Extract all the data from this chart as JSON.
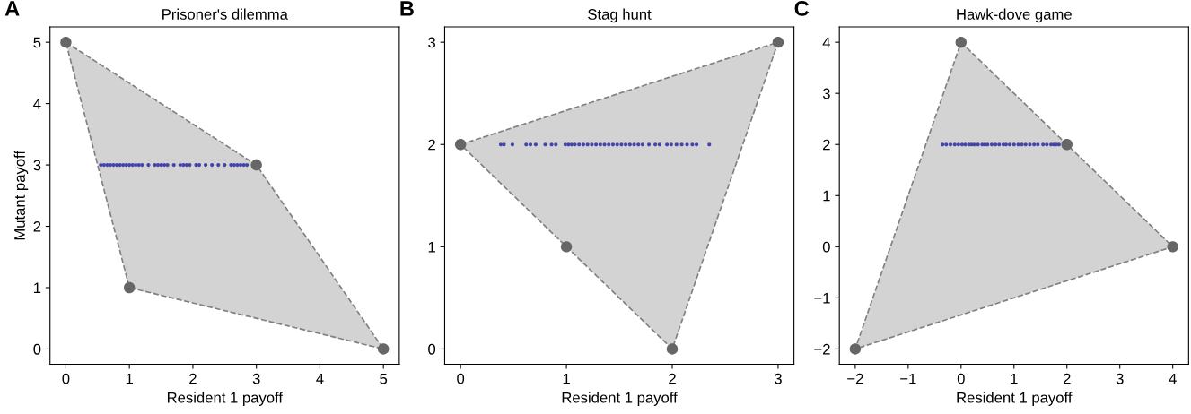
{
  "chart_data": [
    {
      "type": "scatter",
      "title": "Prisoner's dilemma",
      "xlabel": "Resident 1 payoff",
      "ylabel": "Mutant payoff",
      "annotations": [
        "A"
      ],
      "xlim": [
        -0.25,
        5.25
      ],
      "ylim": [
        -0.25,
        5.25
      ],
      "xticks": [
        0,
        1,
        2,
        3,
        4,
        5
      ],
      "yticks": [
        0,
        1,
        2,
        3,
        4,
        5
      ],
      "grid": false,
      "legend": false,
      "series": [
        {
          "type": "area",
          "color": "#d3d3d3",
          "line_style": "dashed",
          "x": [
            0,
            3,
            5,
            1
          ],
          "values": [
            5,
            3,
            0,
            1
          ]
        },
        {
          "color": "#4444aa",
          "x": [
            0.55,
            0.6,
            0.65,
            0.7,
            0.75,
            0.8,
            0.85,
            0.9,
            0.95,
            1.0,
            1.05,
            1.1,
            1.15,
            1.2,
            1.3,
            1.4,
            1.45,
            1.5,
            1.55,
            1.6,
            1.7,
            1.8,
            1.85,
            1.9,
            1.95,
            2.05,
            2.1,
            2.2,
            2.3,
            2.4,
            2.5,
            2.6,
            2.65,
            2.7,
            2.75,
            2.8,
            2.85
          ],
          "values": [
            3,
            3,
            3,
            3,
            3,
            3,
            3,
            3,
            3,
            3,
            3,
            3,
            3,
            3,
            3,
            3,
            3,
            3,
            3,
            3,
            3,
            3,
            3,
            3,
            3,
            3,
            3,
            3,
            3,
            3,
            3,
            3,
            3,
            3,
            3,
            3,
            3
          ]
        },
        {
          "type": "scatter",
          "color": "#666666",
          "x": [
            0,
            3,
            5,
            1
          ],
          "values": [
            5,
            3,
            0,
            1
          ]
        }
      ]
    },
    {
      "type": "scatter",
      "title": "Stag hunt",
      "xlabel": "Resident 1 payoff",
      "annotations": [
        "B"
      ],
      "xlim": [
        -0.15,
        3.15
      ],
      "ylim": [
        -0.15,
        3.15
      ],
      "xticks": [
        0,
        1,
        2,
        3
      ],
      "yticks": [
        0,
        1,
        2,
        3
      ],
      "grid": false,
      "legend": false,
      "series": [
        {
          "type": "area",
          "color": "#d3d3d3",
          "line_style": "dashed",
          "x": [
            0,
            3,
            2,
            1
          ],
          "values": [
            2,
            3,
            0,
            1
          ]
        },
        {
          "color": "#4444aa",
          "x": [
            0.38,
            0.41,
            0.49,
            0.62,
            0.66,
            0.71,
            0.8,
            0.86,
            0.9,
            0.99,
            1.02,
            1.05,
            1.08,
            1.12,
            1.16,
            1.2,
            1.24,
            1.28,
            1.32,
            1.36,
            1.4,
            1.44,
            1.48,
            1.52,
            1.56,
            1.6,
            1.64,
            1.68,
            1.72,
            1.78,
            1.84,
            1.88,
            1.95,
            1.99,
            2.04,
            2.09,
            2.14,
            2.19,
            2.23,
            2.35
          ],
          "values": [
            2,
            2,
            2,
            2,
            2,
            2,
            2,
            2,
            2,
            2,
            2,
            2,
            2,
            2,
            2,
            2,
            2,
            2,
            2,
            2,
            2,
            2,
            2,
            2,
            2,
            2,
            2,
            2,
            2,
            2,
            2,
            2,
            2,
            2,
            2,
            2,
            2,
            2,
            2,
            2
          ]
        },
        {
          "type": "scatter",
          "color": "#666666",
          "x": [
            0,
            3,
            2,
            1
          ],
          "values": [
            2,
            3,
            0,
            1
          ]
        }
      ]
    },
    {
      "type": "scatter",
      "title": "Hawk-dove game",
      "xlabel": "Resident 1 payoff",
      "annotations": [
        "C"
      ],
      "xlim": [
        -2.3,
        4.3
      ],
      "ylim": [
        -2.3,
        4.3
      ],
      "xticks": [
        {
          "value": -2,
          "label": "−2"
        },
        {
          "value": -1,
          "label": "−1"
        },
        0,
        1,
        2,
        3,
        4
      ],
      "yticks": [
        {
          "value": -2,
          "label": "−2"
        },
        {
          "value": -1,
          "label": "−1"
        },
        0,
        1,
        2,
        3,
        4
      ],
      "grid": false,
      "legend": false,
      "series": [
        {
          "type": "area",
          "color": "#d3d3d3",
          "line_style": "dashed",
          "x": [
            0,
            4,
            -2
          ],
          "values": [
            4,
            0,
            -2
          ]
        },
        {
          "color": "#4444aa",
          "x": [
            -0.35,
            -0.28,
            -0.2,
            -0.12,
            -0.05,
            0.02,
            0.08,
            0.15,
            0.2,
            0.25,
            0.32,
            0.4,
            0.45,
            0.5,
            0.58,
            0.65,
            0.72,
            0.8,
            0.85,
            0.92,
            1.0,
            1.08,
            1.15,
            1.22,
            1.3,
            1.38,
            1.45,
            1.55,
            1.62,
            1.7,
            1.75,
            1.8,
            1.85
          ],
          "values": [
            2,
            2,
            2,
            2,
            2,
            2,
            2,
            2,
            2,
            2,
            2,
            2,
            2,
            2,
            2,
            2,
            2,
            2,
            2,
            2,
            2,
            2,
            2,
            2,
            2,
            2,
            2,
            2,
            2,
            2,
            2,
            2,
            2
          ]
        },
        {
          "type": "scatter",
          "color": "#666666",
          "x": [
            0,
            2,
            4,
            -2
          ],
          "values": [
            4,
            2,
            0,
            -2
          ]
        }
      ]
    }
  ]
}
